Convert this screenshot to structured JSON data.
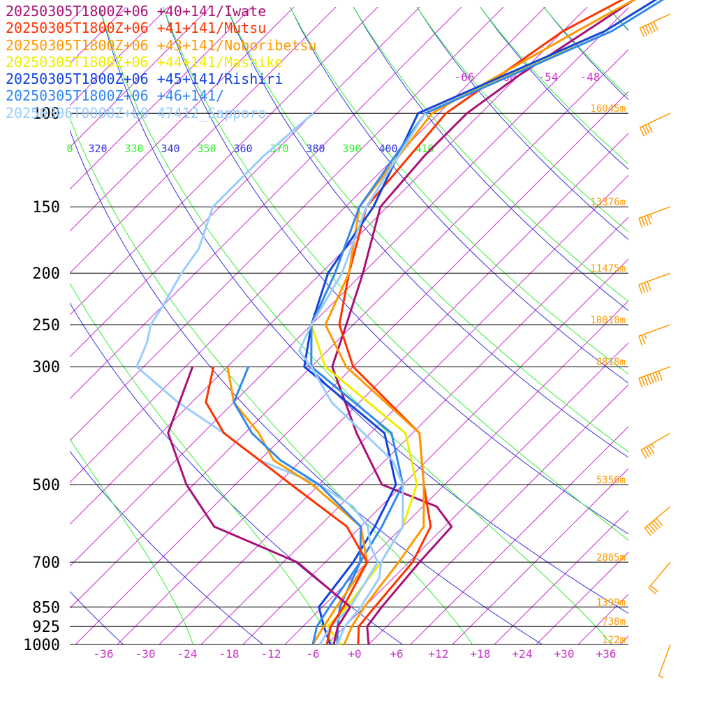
{
  "chart_data": {
    "type": "line",
    "title": "",
    "xlabel": "",
    "ylabel": "",
    "colors": {
      "isotherm": "#cc33cc",
      "theta": "#3333dd",
      "theta_e": "#33ee33",
      "pressure": "#000000",
      "height": "#ff9900",
      "wind": "#ff9900"
    },
    "pressure_levels": [
      {
        "p": 100,
        "label": "100",
        "height": "16045m"
      },
      {
        "p": 150,
        "label": "150",
        "height": "13376m"
      },
      {
        "p": 200,
        "label": "200",
        "height": "11475m"
      },
      {
        "p": 250,
        "label": "250",
        "height": "10010m"
      },
      {
        "p": 300,
        "label": "300",
        "height": "8818m"
      },
      {
        "p": 500,
        "label": "500",
        "height": "5356m"
      },
      {
        "p": 700,
        "label": "700",
        "height": "2885m"
      },
      {
        "p": 850,
        "label": "850",
        "height": "1399m"
      },
      {
        "p": 925,
        "label": "925",
        "height": "738m"
      },
      {
        "p": 1000,
        "label": "1000",
        "height": "122m"
      }
    ],
    "temp_ticks": [
      "-36",
      "-30",
      "-24",
      "-18",
      "-12",
      "-6",
      "+0",
      "+6",
      "+12",
      "+18",
      "+24",
      "+30",
      "+36"
    ],
    "upper_temp_labels": [
      "-66",
      "-60",
      "-54",
      "-48"
    ],
    "theta_labels": [
      "320",
      "340",
      "360",
      "380",
      "400"
    ],
    "theta_e_labels": [
      "0",
      "330",
      "350",
      "370",
      "390",
      "410"
    ],
    "series": [
      {
        "name": "20250305T1800Z+06 +40+141/Iwate",
        "color": "#aa1177",
        "width": 3,
        "points": [
          [
            1000,
            2.0
          ],
          [
            925,
            -0.8
          ],
          [
            850,
            -1.5
          ],
          [
            700,
            -2.5
          ],
          [
            600,
            -3
          ],
          [
            550,
            -8
          ],
          [
            500,
            -19
          ],
          [
            400,
            -30
          ],
          [
            300,
            -43
          ],
          [
            250,
            -47
          ],
          [
            200,
            -52
          ],
          [
            150,
            -59
          ],
          [
            120,
            -60
          ],
          [
            100,
            -60
          ],
          [
            85,
            -58
          ],
          [
            60,
            -52
          ],
          [
            45,
            -45
          ]
        ]
      },
      {
        "name": "20250305T1800Z+06 +41+141/Mutsu",
        "color": "#ff3300",
        "width": 3,
        "points": [
          [
            1000,
            0.5
          ],
          [
            925,
            -2.0
          ],
          [
            850,
            -2.5
          ],
          [
            700,
            -3.5
          ],
          [
            600,
            -6
          ],
          [
            500,
            -13
          ],
          [
            400,
            -21
          ],
          [
            300,
            -40
          ],
          [
            250,
            -48
          ],
          [
            200,
            -54
          ],
          [
            150,
            -61
          ],
          [
            100,
            -63
          ],
          [
            70,
            -58
          ],
          [
            45,
            -45
          ]
        ]
      },
      {
        "name": "20250305T1800Z+06 +43+141/Noboribetsu",
        "color": "#ff9900",
        "width": 3,
        "points": [
          [
            1000,
            -1.5
          ],
          [
            925,
            -3.0
          ],
          [
            850,
            -4.0
          ],
          [
            700,
            -5.5
          ],
          [
            600,
            -7
          ],
          [
            500,
            -13
          ],
          [
            400,
            -21
          ],
          [
            300,
            -41
          ],
          [
            250,
            -50
          ],
          [
            200,
            -54
          ],
          [
            150,
            -62
          ],
          [
            100,
            -65
          ],
          [
            70,
            -56
          ],
          [
            45,
            -44
          ]
        ]
      },
      {
        "name": "20250305T1800Z+06 +44+141/Mashike",
        "color": "#eeee00",
        "width": 3,
        "points": [
          [
            1000,
            -2.0
          ],
          [
            925,
            -6.5
          ],
          [
            850,
            -6.5
          ],
          [
            700,
            -8
          ],
          [
            600,
            -10
          ],
          [
            500,
            -14
          ],
          [
            400,
            -23
          ],
          [
            300,
            -44
          ],
          [
            250,
            -52
          ],
          [
            200,
            -56
          ],
          [
            150,
            -62
          ],
          [
            100,
            -66
          ],
          [
            70,
            -52
          ],
          [
            45,
            -43
          ]
        ]
      },
      {
        "name": "20250305T1800Z+06 +45+141/Rishiri",
        "color": "#1144dd",
        "width": 3,
        "points": [
          [
            1000,
            -3.5
          ],
          [
            925,
            -7.0
          ],
          [
            850,
            -10.5
          ],
          [
            700,
            -12
          ],
          [
            600,
            -14
          ],
          [
            500,
            -17
          ],
          [
            400,
            -26
          ],
          [
            300,
            -47
          ],
          [
            250,
            -52
          ],
          [
            200,
            -57
          ],
          [
            150,
            -60
          ],
          [
            100,
            -67
          ],
          [
            70,
            -52
          ],
          [
            45,
            -43
          ]
        ]
      },
      {
        "name": "20250305T1800Z+06 +46+141/",
        "color": "#3388ee",
        "width": 3,
        "points": [
          [
            1000,
            -2.5
          ],
          [
            925,
            -5.0
          ],
          [
            850,
            -7.5
          ],
          [
            700,
            -11
          ],
          [
            600,
            -13
          ],
          [
            500,
            -16
          ],
          [
            400,
            -25
          ],
          [
            300,
            -46
          ],
          [
            250,
            -52
          ],
          [
            200,
            -56
          ],
          [
            150,
            -62
          ],
          [
            100,
            -66
          ],
          [
            70,
            -51
          ],
          [
            45,
            -42
          ]
        ]
      },
      {
        "name": "20250306T0000Z+00 47412_Sapporo",
        "color": "#99ccff",
        "width": 3,
        "points": [
          [
            1000,
            -2.5
          ],
          [
            925,
            -4.0
          ],
          [
            850,
            -4.5
          ],
          [
            750,
            -6
          ],
          [
            700,
            -8
          ],
          [
            650,
            -9
          ],
          [
            600,
            -10
          ],
          [
            500,
            -16
          ],
          [
            450,
            -21
          ],
          [
            400,
            -29
          ],
          [
            350,
            -38
          ],
          [
            300,
            -46
          ],
          [
            280,
            -50
          ],
          [
            250,
            -52
          ],
          [
            200,
            -55
          ],
          [
            150,
            -61
          ],
          [
            100,
            -66
          ]
        ]
      },
      {
        "name": "",
        "color": "#99ccff",
        "width": 3,
        "points": [
          [
            1000,
            -5
          ],
          [
            925,
            -6
          ],
          [
            850,
            -6
          ],
          [
            700,
            -8.5
          ],
          [
            650,
            -12
          ],
          [
            600,
            -15
          ],
          [
            550,
            -20
          ],
          [
            500,
            -28
          ],
          [
            450,
            -40
          ],
          [
            400,
            -49
          ],
          [
            350,
            -60
          ],
          [
            300,
            -71
          ],
          [
            270,
            -73
          ],
          [
            250,
            -75
          ],
          [
            230,
            -76
          ],
          [
            200,
            -78
          ],
          [
            180,
            -79
          ],
          [
            150,
            -83
          ],
          [
            120,
            -83
          ],
          [
            100,
            -82
          ]
        ]
      },
      {
        "name": "",
        "color": "#ff9900",
        "width": 3,
        "points": [
          [
            1000,
            -6
          ],
          [
            925,
            -7
          ],
          [
            850,
            -8
          ],
          [
            700,
            -10
          ],
          [
            600,
            -16
          ],
          [
            500,
            -29
          ],
          [
            450,
            -38
          ],
          [
            400,
            -44
          ],
          [
            350,
            -52
          ],
          [
            300,
            -58
          ]
        ]
      },
      {
        "name": "",
        "color": "#3388ee",
        "width": 3,
        "points": [
          [
            1000,
            -6
          ],
          [
            925,
            -8
          ],
          [
            850,
            -9
          ],
          [
            700,
            -11
          ],
          [
            600,
            -16
          ],
          [
            500,
            -28
          ],
          [
            450,
            -37
          ],
          [
            400,
            -45
          ],
          [
            350,
            -52
          ],
          [
            300,
            -55
          ]
        ]
      },
      {
        "name": "",
        "color": "#ff3300",
        "width": 3,
        "points": [
          [
            1000,
            -4
          ],
          [
            925,
            -6
          ],
          [
            850,
            -7
          ],
          [
            700,
            -10
          ],
          [
            600,
            -18
          ],
          [
            500,
            -32
          ],
          [
            450,
            -40
          ],
          [
            400,
            -49
          ],
          [
            350,
            -56
          ],
          [
            300,
            -60
          ]
        ]
      },
      {
        "name": "",
        "color": "#aa1177",
        "width": 3,
        "points": [
          [
            1000,
            -3
          ],
          [
            925,
            -5
          ],
          [
            850,
            -6
          ],
          [
            700,
            -20
          ],
          [
            600,
            -37
          ],
          [
            500,
            -47
          ],
          [
            400,
            -57
          ],
          [
            300,
            -63
          ]
        ]
      }
    ],
    "wind_barbs": [
      {
        "p": 40,
        "speed": 25,
        "dir": 240
      },
      {
        "p": 65,
        "speed": 30,
        "dir": 245
      },
      {
        "p": 100,
        "speed": 20,
        "dir": 245
      },
      {
        "p": 150,
        "speed": 25,
        "dir": 250
      },
      {
        "p": 200,
        "speed": 20,
        "dir": 250
      },
      {
        "p": 250,
        "speed": 15,
        "dir": 250
      },
      {
        "p": 300,
        "speed": 40,
        "dir": 250
      },
      {
        "p": 400,
        "speed": 25,
        "dir": 240
      },
      {
        "p": 550,
        "speed": 30,
        "dir": 230
      },
      {
        "p": 700,
        "speed": 10,
        "dir": 220
      },
      {
        "p": 1000,
        "speed": 5,
        "dir": 200
      }
    ]
  }
}
